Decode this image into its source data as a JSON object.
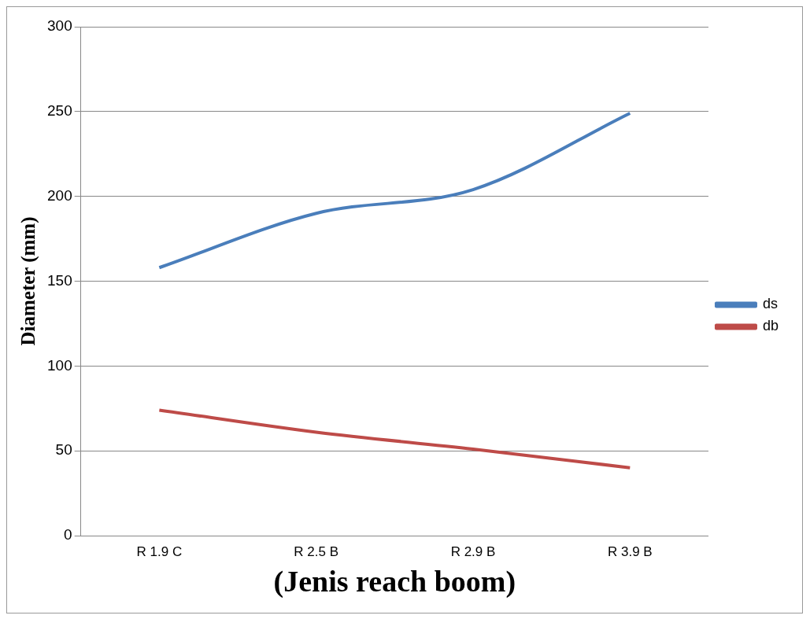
{
  "chart_data": {
    "type": "line",
    "xlabel": "(Jenis reach boom)",
    "ylabel": "Diameter (mm)",
    "categories": [
      "R 1.9 C",
      "R 2.5 B",
      "R 2.9 B",
      "R 3.9 B"
    ],
    "series": [
      {
        "name": "ds",
        "color": "#4a7ebb",
        "values": [
          158,
          190,
          204,
          249
        ]
      },
      {
        "name": "db",
        "color": "#be4b48",
        "values": [
          74,
          61,
          51,
          40
        ]
      }
    ],
    "ylim": [
      0,
      300
    ],
    "yticks": [
      0,
      50,
      100,
      150,
      200,
      250,
      300
    ],
    "grid": "y",
    "legend": "right",
    "marker": "none",
    "line_style": "solid"
  }
}
